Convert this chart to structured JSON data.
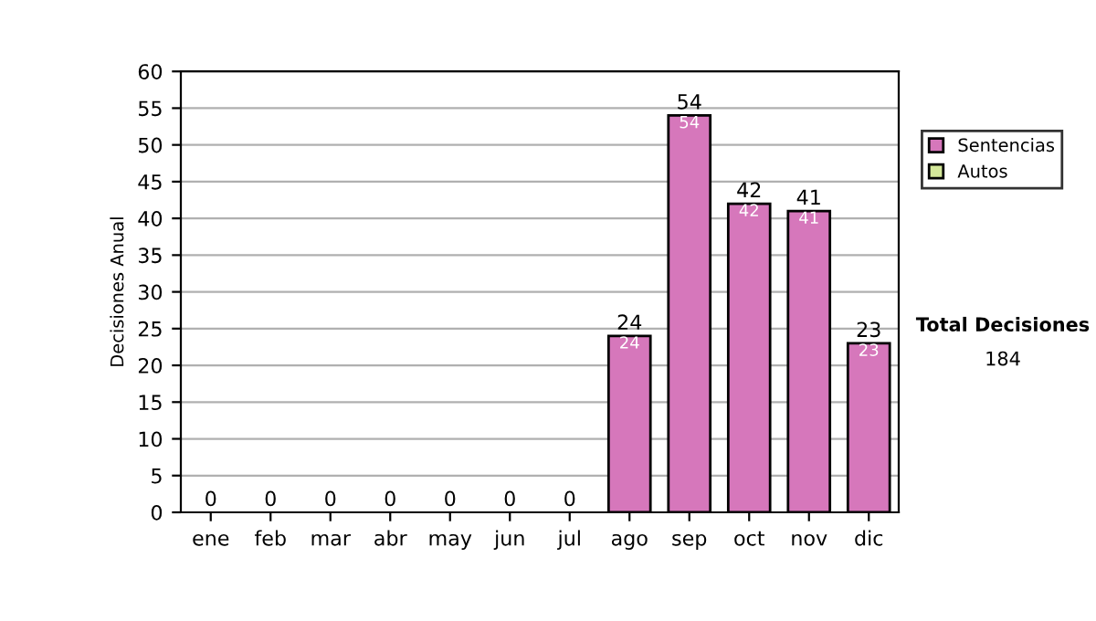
{
  "chart_data": {
    "type": "bar",
    "stacked": true,
    "ylabel": "Decisiones Anual",
    "categories": [
      "ene",
      "feb",
      "mar",
      "abr",
      "may",
      "jun",
      "jul",
      "ago",
      "sep",
      "oct",
      "nov",
      "dic"
    ],
    "series": [
      {
        "name": "Sentencias",
        "color": "#d677bb",
        "values": [
          0,
          0,
          0,
          0,
          0,
          0,
          0,
          24,
          54,
          42,
          41,
          23
        ],
        "value_labels": [
          null,
          null,
          null,
          null,
          null,
          null,
          null,
          "24",
          "54",
          "42",
          "41",
          "23"
        ]
      },
      {
        "name": "Autos",
        "color": "#d4e89a",
        "values": [
          0,
          0,
          0,
          0,
          0,
          0,
          0,
          0,
          0,
          0,
          0,
          0
        ]
      }
    ],
    "totals": [
      "0",
      "0",
      "0",
      "0",
      "0",
      "0",
      "0",
      "24",
      "54",
      "42",
      "41",
      "23"
    ],
    "ylim": [
      0,
      60
    ],
    "yticks": [
      0,
      5,
      10,
      15,
      20,
      25,
      30,
      35,
      40,
      45,
      50,
      55,
      60
    ],
    "grid": "y",
    "legend": "right",
    "annotations": [
      "Total Decisiones",
      "184"
    ]
  }
}
